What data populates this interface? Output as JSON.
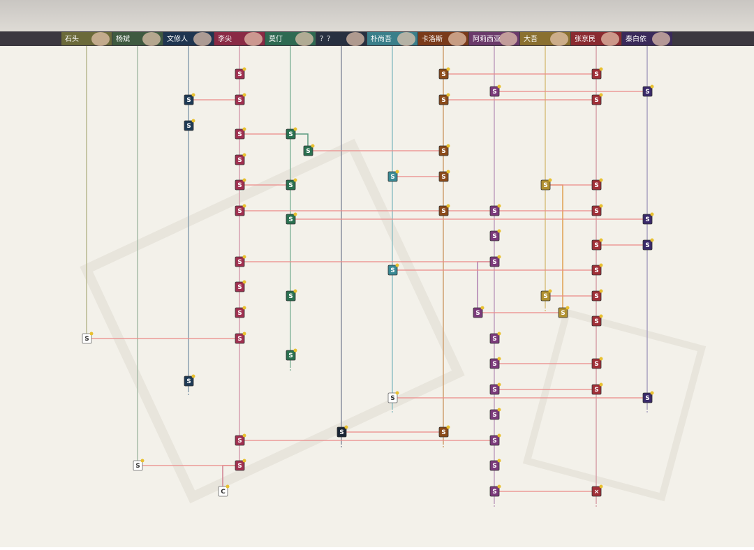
{
  "tabs": [
    {
      "name": "石头"
    },
    {
      "name": "杨斌"
    },
    {
      "name": "文修人"
    },
    {
      "name": "李尖"
    },
    {
      "name": "莫仃"
    },
    {
      "name": "？？"
    },
    {
      "name": "朴尚吾"
    },
    {
      "name": "卡洛斯"
    },
    {
      "name": "阿莉西亚"
    },
    {
      "name": "大吾"
    },
    {
      "name": "张京民"
    },
    {
      "name": "秦白依"
    }
  ],
  "nodes": [
    {
      "label": "S"
    },
    {
      "label": "S"
    },
    {
      "label": "S"
    },
    {
      "label": "S"
    },
    {
      "label": "S"
    },
    {
      "label": "S"
    },
    {
      "label": "S"
    },
    {
      "label": "S"
    },
    {
      "label": "S"
    },
    {
      "label": "S"
    },
    {
      "label": "S"
    },
    {
      "label": "S"
    },
    {
      "label": "S"
    },
    {
      "label": "S"
    },
    {
      "label": "S"
    },
    {
      "label": "S"
    },
    {
      "label": "S"
    },
    {
      "label": "S"
    },
    {
      "label": "S"
    },
    {
      "label": "S"
    },
    {
      "label": "S"
    },
    {
      "label": "S"
    },
    {
      "label": "S"
    },
    {
      "label": "S"
    },
    {
      "label": "S"
    },
    {
      "label": "S"
    },
    {
      "label": "S"
    },
    {
      "label": "S"
    },
    {
      "label": "S"
    },
    {
      "label": "S"
    },
    {
      "label": "S"
    },
    {
      "label": "S"
    },
    {
      "label": "S"
    },
    {
      "label": "S"
    },
    {
      "label": "S"
    },
    {
      "label": "S"
    },
    {
      "label": "S"
    },
    {
      "label": "S"
    },
    {
      "label": "S"
    },
    {
      "label": "S"
    },
    {
      "label": "S"
    },
    {
      "label": "S"
    },
    {
      "label": "S"
    },
    {
      "label": "S"
    },
    {
      "label": "S"
    },
    {
      "label": "S"
    },
    {
      "label": "S"
    },
    {
      "label": "S"
    },
    {
      "label": "S"
    },
    {
      "label": "S"
    },
    {
      "label": "S"
    },
    {
      "label": "S"
    },
    {
      "label": "S"
    },
    {
      "label": "S"
    },
    {
      "label": "S"
    },
    {
      "label": "S"
    },
    {
      "label": "×"
    },
    {
      "label": "S"
    },
    {
      "label": "S"
    },
    {
      "label": "S"
    },
    {
      "label": "S"
    },
    {
      "label": "S"
    },
    {
      "label": "S"
    },
    {
      "label": "C"
    }
  ]
}
